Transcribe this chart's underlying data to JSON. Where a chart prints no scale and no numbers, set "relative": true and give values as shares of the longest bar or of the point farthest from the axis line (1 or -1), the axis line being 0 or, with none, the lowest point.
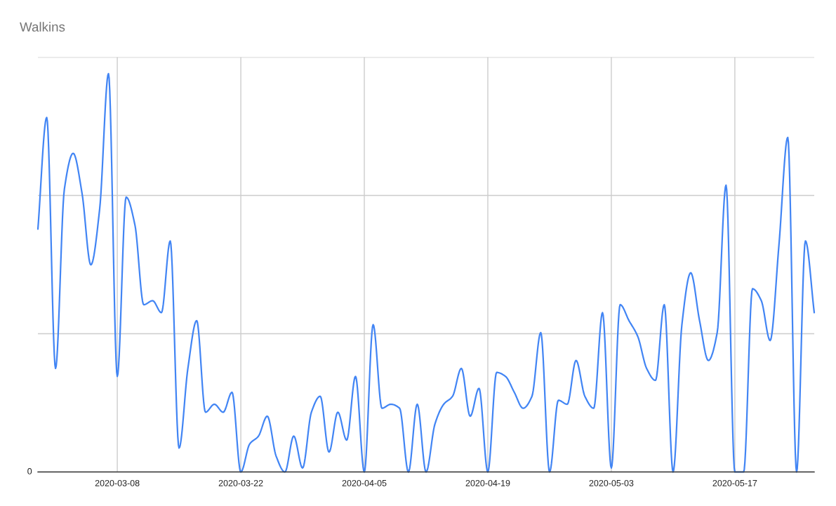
{
  "chart_data": {
    "type": "line",
    "title": "Walkins",
    "relative": true,
    "x": [
      "2020-02-28",
      "2020-02-29",
      "2020-03-01",
      "2020-03-02",
      "2020-03-03",
      "2020-03-04",
      "2020-03-05",
      "2020-03-06",
      "2020-03-07",
      "2020-03-08",
      "2020-03-09",
      "2020-03-10",
      "2020-03-11",
      "2020-03-12",
      "2020-03-13",
      "2020-03-14",
      "2020-03-15",
      "2020-03-16",
      "2020-03-17",
      "2020-03-18",
      "2020-03-19",
      "2020-03-20",
      "2020-03-21",
      "2020-03-22",
      "2020-03-23",
      "2020-03-24",
      "2020-03-25",
      "2020-03-26",
      "2020-03-27",
      "2020-03-28",
      "2020-03-29",
      "2020-03-30",
      "2020-03-31",
      "2020-04-01",
      "2020-04-02",
      "2020-04-03",
      "2020-04-04",
      "2020-04-05",
      "2020-04-06",
      "2020-04-07",
      "2020-04-08",
      "2020-04-09",
      "2020-04-10",
      "2020-04-11",
      "2020-04-12",
      "2020-04-13",
      "2020-04-14",
      "2020-04-15",
      "2020-04-16",
      "2020-04-17",
      "2020-04-18",
      "2020-04-19",
      "2020-04-20",
      "2020-04-21",
      "2020-04-22",
      "2020-04-23",
      "2020-04-24",
      "2020-04-25",
      "2020-04-26",
      "2020-04-27",
      "2020-04-28",
      "2020-04-29",
      "2020-04-30",
      "2020-05-01",
      "2020-05-02",
      "2020-05-03",
      "2020-05-04",
      "2020-05-05",
      "2020-05-06",
      "2020-05-07",
      "2020-05-08",
      "2020-05-09",
      "2020-05-10",
      "2020-05-11",
      "2020-05-12",
      "2020-05-13",
      "2020-05-14",
      "2020-05-15",
      "2020-05-16",
      "2020-05-17",
      "2020-05-18",
      "2020-05-19",
      "2020-05-20",
      "2020-05-21",
      "2020-05-22",
      "2020-05-23",
      "2020-05-24",
      "2020-05-25",
      "2020-05-26"
    ],
    "series": [
      {
        "color": "#4285f4",
        "values": [
          0.61,
          0.89,
          0.26,
          0.71,
          0.8,
          0.7,
          0.52,
          0.66,
          1.0,
          0.24,
          0.69,
          0.62,
          0.42,
          0.43,
          0.4,
          0.58,
          0.06,
          0.26,
          0.38,
          0.15,
          0.17,
          0.15,
          0.2,
          0,
          0.07,
          0.09,
          0.14,
          0.04,
          0,
          0.09,
          0.01,
          0.15,
          0.19,
          0.05,
          0.15,
          0.08,
          0.24,
          0,
          0.37,
          0.16,
          0.17,
          0.16,
          0,
          0.17,
          0,
          0.12,
          0.17,
          0.19,
          0.26,
          0.14,
          0.21,
          0,
          0.25,
          0.24,
          0.2,
          0.16,
          0.19,
          0.35,
          0,
          0.18,
          0.17,
          0.28,
          0.19,
          0.16,
          0.4,
          0.01,
          0.42,
          0.38,
          0.34,
          0.26,
          0.23,
          0.42,
          0,
          0.37,
          0.5,
          0.38,
          0.28,
          0.35,
          0.72,
          0,
          0,
          0.46,
          0.43,
          0.33,
          0.57,
          0.84,
          0,
          0.58,
          0.4
        ]
      }
    ],
    "xlim": [
      "2020-02-28",
      "2020-05-26"
    ],
    "xticks": [
      "2020-03-08",
      "2020-03-22",
      "2020-04-05",
      "2020-04-19",
      "2020-05-03",
      "2020-05-17"
    ],
    "annotations": [
      "0"
    ],
    "grid": true
  }
}
